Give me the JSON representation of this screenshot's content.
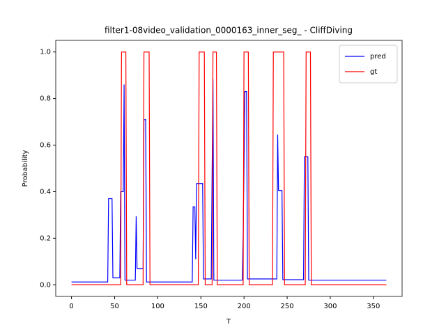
{
  "chart_data": {
    "type": "line",
    "title": "filter1-08video_validation_0000163_inner_seg_ - CliffDiving",
    "x_label": "T",
    "y_label": "Probability",
    "xlim": [
      -18.25,
      383.25
    ],
    "ylim": [
      -0.05,
      1.05
    ],
    "xticks": [
      0,
      50,
      100,
      150,
      200,
      250,
      300,
      350
    ],
    "yticks": [
      {
        "value": 0,
        "label": "0.0"
      },
      {
        "value": 0.2,
        "label": "0.2"
      },
      {
        "value": 0.4,
        "label": "0.4"
      },
      {
        "value": 0.6,
        "label": "0.6"
      },
      {
        "value": 0.8,
        "label": "0.8"
      },
      {
        "value": 1,
        "label": "1.0"
      }
    ],
    "legend": "upper right",
    "grid": false,
    "series": [
      {
        "name": "pred",
        "color": "#0000ff",
        "x": [
          0,
          42,
          43,
          47,
          48,
          56,
          57,
          60,
          61,
          62,
          74,
          75,
          76,
          83,
          84,
          86,
          87,
          140,
          141,
          143,
          144,
          145,
          152,
          153,
          162,
          163,
          164,
          165,
          198,
          199,
          201,
          203,
          204,
          238,
          239,
          240,
          244,
          245,
          269,
          270,
          274,
          275,
          365
        ],
        "values": [
          0.012,
          0.012,
          0.37,
          0.37,
          0.03,
          0.03,
          0.4,
          0.4,
          0.86,
          0.02,
          0.02,
          0.295,
          0.07,
          0.07,
          0.71,
          0.71,
          0.012,
          0.012,
          0.335,
          0.335,
          0.11,
          0.435,
          0.435,
          0.025,
          0.025,
          0.48,
          0.885,
          0.02,
          0.02,
          0.21,
          0.83,
          0.83,
          0.025,
          0.025,
          0.645,
          0.405,
          0.405,
          0.022,
          0.022,
          0.55,
          0.55,
          0.02,
          0.02
        ]
      },
      {
        "name": "gt",
        "color": "#ff0000",
        "x": [
          0,
          57,
          58,
          63,
          64,
          83,
          84,
          90,
          91,
          147,
          148,
          154,
          155,
          163,
          164,
          168,
          169,
          199,
          200,
          205,
          206,
          233,
          234,
          246,
          247,
          271,
          272,
          277,
          278,
          365
        ],
        "values": [
          0,
          0,
          1,
          1,
          0,
          0,
          1,
          1,
          0,
          0,
          1,
          1,
          0,
          0,
          1,
          1,
          0,
          0,
          1,
          1,
          0,
          0,
          1,
          1,
          0,
          0,
          1,
          1,
          0,
          0
        ]
      }
    ]
  }
}
